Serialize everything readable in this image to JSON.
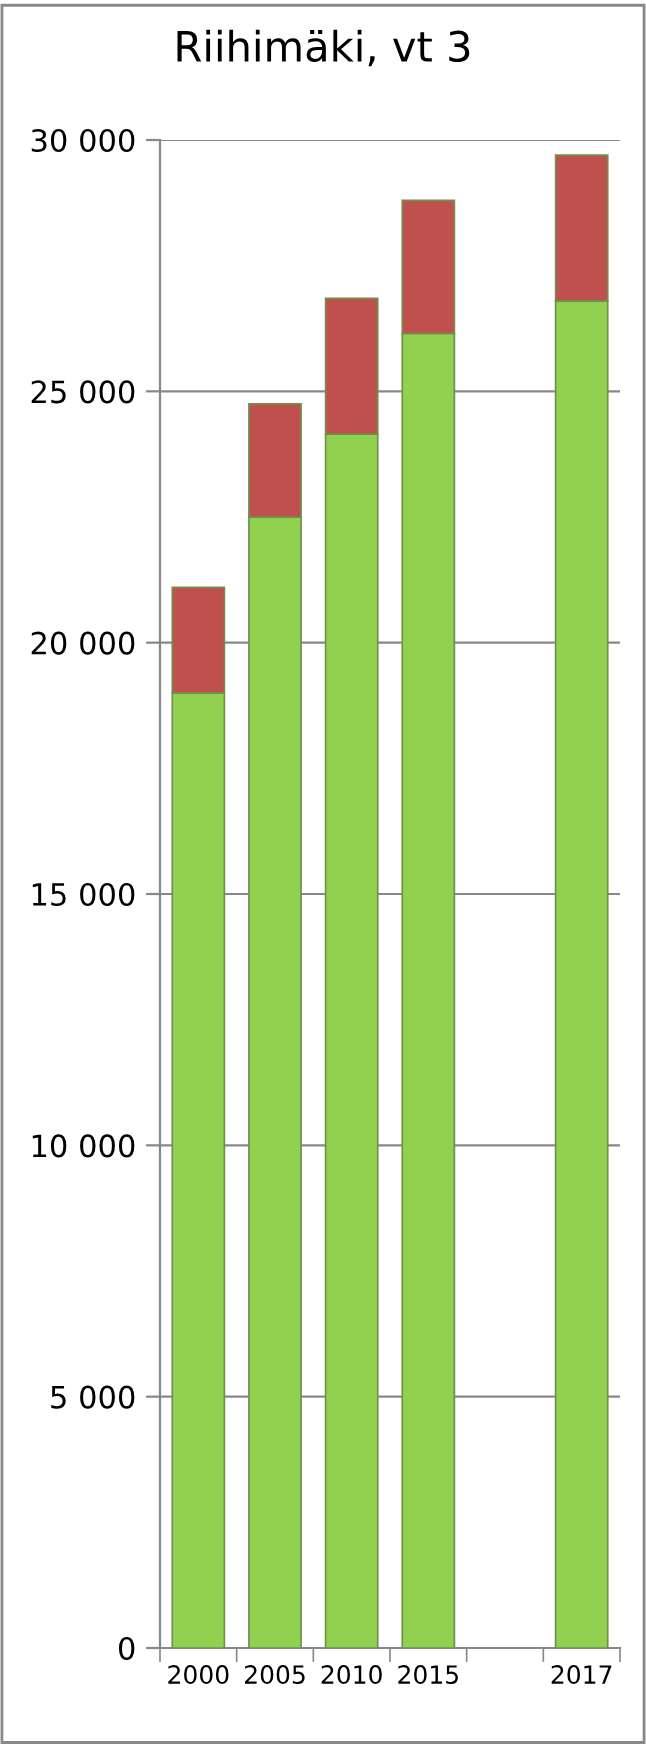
{
  "chart_data": {
    "type": "bar",
    "title": "Riihimäki, vt 3",
    "stacked": true,
    "categories": [
      "2000",
      "2005",
      "2010",
      "2015",
      null,
      "2017"
    ],
    "series": [
      {
        "color": "#92d050",
        "values": [
          19000,
          22500,
          24150,
          26150,
          null,
          26800
        ]
      },
      {
        "color": "#c0504d",
        "values": [
          2100,
          2250,
          2700,
          2650,
          null,
          2900
        ]
      }
    ],
    "ylim": [
      0,
      30000
    ],
    "yticks": [
      {
        "value": 0,
        "label": "0"
      },
      {
        "value": 5000,
        "label": "5 000"
      },
      {
        "value": 10000,
        "label": "10 000"
      },
      {
        "value": 15000,
        "label": "15 000"
      },
      {
        "value": 20000,
        "label": "20 000"
      },
      {
        "value": 25000,
        "label": "25 000"
      },
      {
        "value": 30000,
        "label": "30 000"
      }
    ],
    "grid": "y"
  }
}
